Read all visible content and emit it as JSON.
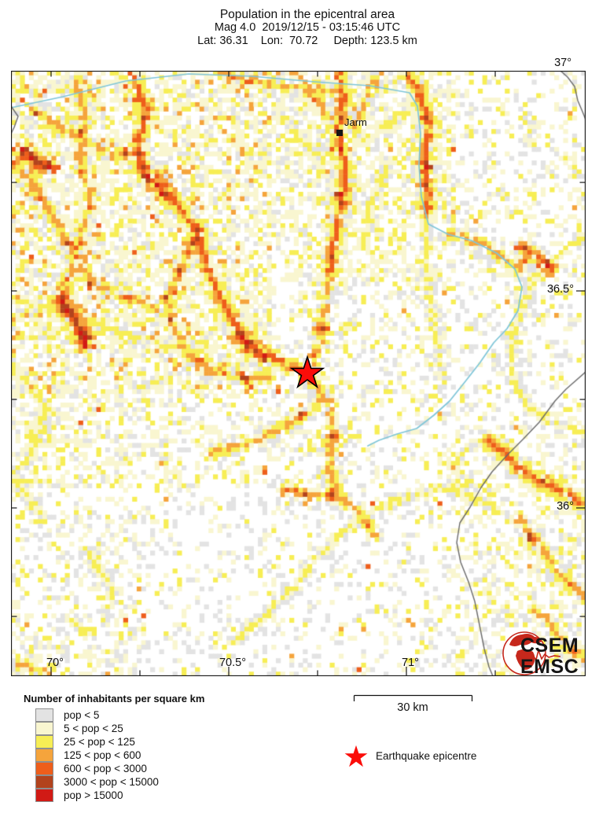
{
  "header": {
    "title": "Population in the epicentral area",
    "line2": "Mag 4.0  2019/12/15 - 03:15:46 UTC",
    "line3": "Lat: 36.31    Lon:  70.72     Depth: 123.5 km"
  },
  "map": {
    "place_label": "Jarm",
    "lat_labels": [
      "37°",
      "36.5°",
      "36°"
    ],
    "lon_labels": [
      "70°",
      "70.5°",
      "71°"
    ]
  },
  "legend": {
    "title": "Number of inhabitants per square km",
    "items": [
      {
        "label": "pop < 5",
        "color": "#e3e3e3"
      },
      {
        "label": "5 < pop < 25",
        "color": "#f9f6d0"
      },
      {
        "label": "25 < pop < 125",
        "color": "#f7ee55"
      },
      {
        "label": "125 < pop < 600",
        "color": "#f5a43c"
      },
      {
        "label": "600 < pop < 3000",
        "color": "#ee5e1b"
      },
      {
        "label": "3000 < pop < 15000",
        "color": "#b2431d"
      },
      {
        "label": "pop > 15000",
        "color": "#d11a15"
      }
    ]
  },
  "scalebar": {
    "label": "30 km"
  },
  "epicentre_legend": {
    "label": "Earthquake epicentre"
  },
  "logo": {
    "line1": "CSEM",
    "line2": "EMSC"
  },
  "colors": {
    "star": "#fb0d09",
    "river": "#7fc6d8",
    "boundary": "#6a6a6a",
    "frame": "#1b1b1b",
    "logo_red": "#c6281c",
    "heat_palette": [
      "#ffffff",
      "#e3e3e3",
      "#f9f6d0",
      "#f7ee55",
      "#f5a43c",
      "#ee5e1b",
      "#b2431d",
      "#d11a15"
    ]
  }
}
